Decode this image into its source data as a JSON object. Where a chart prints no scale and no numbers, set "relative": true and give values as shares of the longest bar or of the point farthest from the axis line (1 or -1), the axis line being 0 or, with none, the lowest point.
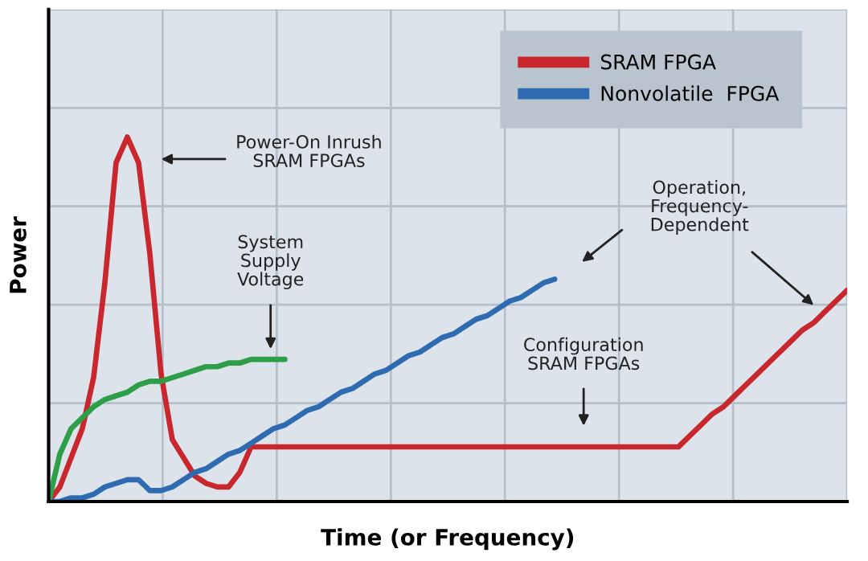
{
  "chart_data": {
    "type": "line",
    "relative": true,
    "xlabel": "Time (or Frequency)",
    "ylabel": "Power",
    "categories": [
      null,
      null,
      null,
      null,
      null,
      null,
      null,
      null,
      null,
      null,
      null,
      null,
      null,
      null,
      null,
      null,
      null,
      null,
      null,
      null,
      null,
      null,
      null,
      null,
      null,
      null,
      null,
      null,
      null,
      null,
      null,
      null,
      null,
      null,
      null,
      null,
      null,
      null,
      null,
      null,
      null,
      null,
      null,
      null,
      null,
      null,
      null,
      null,
      null,
      null,
      null,
      null,
      null,
      null,
      null,
      null,
      null,
      null,
      null,
      null,
      null,
      null,
      null,
      null,
      null,
      null,
      null,
      null,
      null,
      null,
      null,
      null
    ],
    "series": [
      {
        "name": "SRAM FPGA",
        "color": "#c8282d",
        "values": [
          0,
          0.04,
          0.12,
          0.2,
          0.34,
          0.6,
          0.93,
          1.0,
          0.93,
          0.68,
          0.35,
          0.17,
          0.12,
          0.07,
          0.05,
          0.04,
          0.04,
          0.08,
          0.15,
          0.15,
          0.15,
          0.15,
          0.15,
          0.15,
          0.15,
          0.15,
          0.15,
          0.15,
          0.15,
          0.15,
          0.15,
          0.15,
          0.15,
          0.15,
          0.15,
          0.15,
          0.15,
          0.15,
          0.15,
          0.15,
          0.15,
          0.15,
          0.15,
          0.15,
          0.15,
          0.15,
          0.15,
          0.15,
          0.15,
          0.15,
          0.15,
          0.15,
          0.15,
          0.15,
          0.15,
          0.15,
          0.15,
          0.18,
          0.21,
          0.24,
          0.26,
          0.29,
          0.32,
          0.35,
          0.38,
          0.41,
          0.44,
          0.47,
          0.49,
          0.52,
          0.55,
          0.58
        ]
      },
      {
        "name": "Nonvolatile  FPGA",
        "color": "#2e6bb0",
        "values": [
          0,
          0,
          0.01,
          0.01,
          0.02,
          0.04,
          0.05,
          0.06,
          0.06,
          0.03,
          0.03,
          0.04,
          0.06,
          0.08,
          0.09,
          0.11,
          0.13,
          0.14,
          0.16,
          0.18,
          0.2,
          0.21,
          0.23,
          0.25,
          0.26,
          0.28,
          0.3,
          0.31,
          0.33,
          0.35,
          0.36,
          0.38,
          0.4,
          0.41,
          0.43,
          0.45,
          0.46,
          0.48,
          0.5,
          0.51,
          0.53,
          0.55,
          0.56,
          0.58,
          0.6,
          0.61,
          null,
          null,
          null,
          null,
          null,
          null,
          null,
          null,
          null,
          null,
          null,
          null,
          null,
          null,
          null,
          null,
          null,
          null,
          null,
          null,
          null,
          null,
          null,
          null,
          null,
          null
        ]
      },
      {
        "color": "#2e9e48",
        "values": [
          0,
          0.13,
          0.2,
          0.23,
          0.26,
          0.28,
          0.29,
          0.3,
          0.32,
          0.33,
          0.33,
          0.34,
          0.35,
          0.36,
          0.37,
          0.37,
          0.38,
          0.38,
          0.39,
          0.39,
          0.39,
          0.39,
          null,
          null,
          null,
          null,
          null,
          null,
          null,
          null,
          null,
          null,
          null,
          null,
          null,
          null,
          null,
          null,
          null,
          null,
          null,
          null,
          null,
          null,
          null,
          null,
          null,
          null,
          null,
          null,
          null,
          null,
          null,
          null,
          null,
          null,
          null,
          null,
          null,
          null,
          null,
          null,
          null,
          null,
          null,
          null,
          null,
          null,
          null,
          null,
          null,
          null
        ]
      }
    ],
    "annotations": [
      "Power-On Inrush\nSRAM FPGAs",
      "System\nSupply\nVoltage",
      "Operation,\nFrequency-\nDependent",
      "Configuration\nSRAM FPGAs"
    ],
    "grid": true,
    "legend": "top right",
    "marker": "none",
    "line_style": "solid"
  }
}
